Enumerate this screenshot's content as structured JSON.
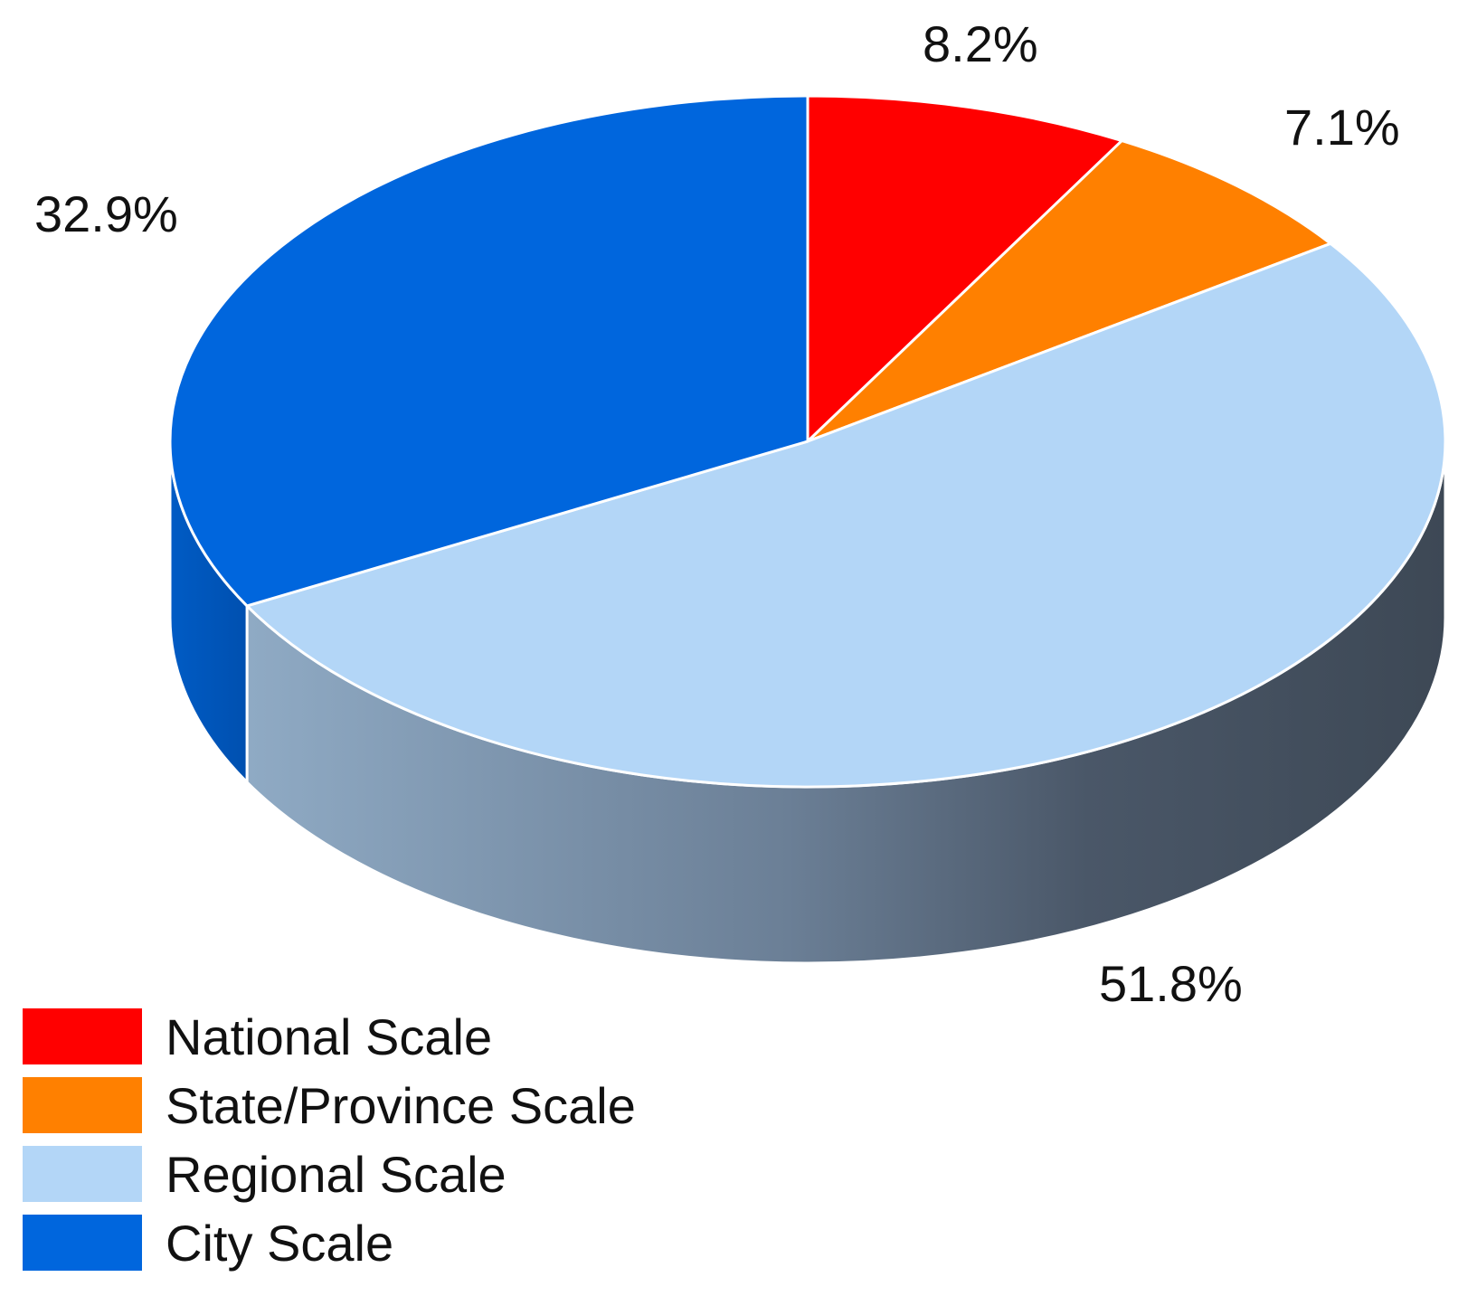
{
  "chart_data": {
    "type": "pie",
    "style": "3d",
    "legend_position": "bottom-left",
    "slices": [
      {
        "name": "National Scale",
        "value": 8.2,
        "label": "8.2%",
        "color": "#ff0000"
      },
      {
        "name": "State/Province Scale",
        "value": 7.1,
        "label": "7.1%",
        "color": "#ff8000"
      },
      {
        "name": "Regional Scale",
        "value": 51.8,
        "label": "51.8%",
        "color": "#b3d6f7"
      },
      {
        "name": "City Scale",
        "value": 32.9,
        "label": "32.9%",
        "color": "#0066dd"
      }
    ]
  }
}
